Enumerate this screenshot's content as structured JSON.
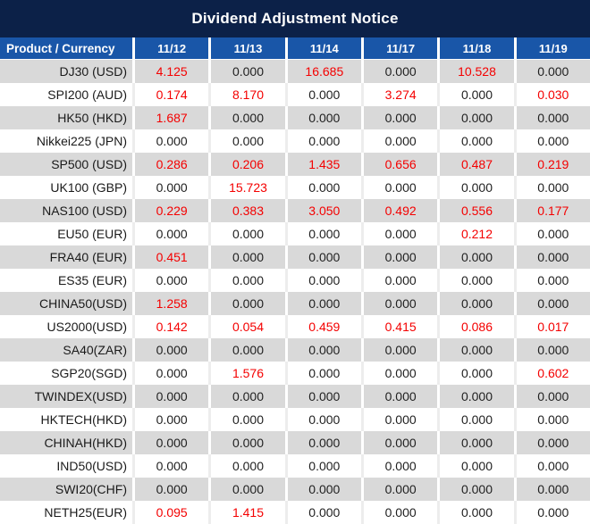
{
  "title": "Dividend Adjustment Notice",
  "colors": {
    "title_bg": "#0c2148",
    "header_bg": "#1956a8",
    "row_alt_bg": "#d9d9d9",
    "row_bg": "#ffffff",
    "grid_gray": "#ffffff",
    "grid_white": "#ededed",
    "nonzero_value_color": "#f40000",
    "zero_value_color": "#1f1f1f",
    "header_text": "#ffffff"
  },
  "table": {
    "product_header": "Product / Currency",
    "date_headers": [
      "11/12",
      "11/13",
      "11/14",
      "11/17",
      "11/18",
      "11/19"
    ],
    "rows": [
      {
        "product": "DJ30 (USD)",
        "values": [
          "4.125",
          "0.000",
          "16.685",
          "0.000",
          "10.528",
          "0.000"
        ]
      },
      {
        "product": "SPI200 (AUD)",
        "values": [
          "0.174",
          "8.170",
          "0.000",
          "3.274",
          "0.000",
          "0.030"
        ]
      },
      {
        "product": "HK50 (HKD)",
        "values": [
          "1.687",
          "0.000",
          "0.000",
          "0.000",
          "0.000",
          "0.000"
        ]
      },
      {
        "product": "Nikkei225 (JPN)",
        "values": [
          "0.000",
          "0.000",
          "0.000",
          "0.000",
          "0.000",
          "0.000"
        ]
      },
      {
        "product": "SP500 (USD)",
        "values": [
          "0.286",
          "0.206",
          "1.435",
          "0.656",
          "0.487",
          "0.219"
        ]
      },
      {
        "product": "UK100 (GBP)",
        "values": [
          "0.000",
          "15.723",
          "0.000",
          "0.000",
          "0.000",
          "0.000"
        ]
      },
      {
        "product": "NAS100 (USD)",
        "values": [
          "0.229",
          "0.383",
          "3.050",
          "0.492",
          "0.556",
          "0.177"
        ]
      },
      {
        "product": "EU50 (EUR)",
        "values": [
          "0.000",
          "0.000",
          "0.000",
          "0.000",
          "0.212",
          "0.000"
        ]
      },
      {
        "product": "FRA40 (EUR)",
        "values": [
          "0.451",
          "0.000",
          "0.000",
          "0.000",
          "0.000",
          "0.000"
        ]
      },
      {
        "product": "ES35 (EUR)",
        "values": [
          "0.000",
          "0.000",
          "0.000",
          "0.000",
          "0.000",
          "0.000"
        ]
      },
      {
        "product": "CHINA50(USD)",
        "values": [
          "1.258",
          "0.000",
          "0.000",
          "0.000",
          "0.000",
          "0.000"
        ]
      },
      {
        "product": "US2000(USD)",
        "values": [
          "0.142",
          "0.054",
          "0.459",
          "0.415",
          "0.086",
          "0.017"
        ]
      },
      {
        "product": "SA40(ZAR)",
        "values": [
          "0.000",
          "0.000",
          "0.000",
          "0.000",
          "0.000",
          "0.000"
        ]
      },
      {
        "product": "SGP20(SGD)",
        "values": [
          "0.000",
          "1.576",
          "0.000",
          "0.000",
          "0.000",
          "0.602"
        ]
      },
      {
        "product": "TWINDEX(USD)",
        "values": [
          "0.000",
          "0.000",
          "0.000",
          "0.000",
          "0.000",
          "0.000"
        ]
      },
      {
        "product": "HKTECH(HKD)",
        "values": [
          "0.000",
          "0.000",
          "0.000",
          "0.000",
          "0.000",
          "0.000"
        ]
      },
      {
        "product": "CHINAH(HKD)",
        "values": [
          "0.000",
          "0.000",
          "0.000",
          "0.000",
          "0.000",
          "0.000"
        ]
      },
      {
        "product": "IND50(USD)",
        "values": [
          "0.000",
          "0.000",
          "0.000",
          "0.000",
          "0.000",
          "0.000"
        ]
      },
      {
        "product": "SWI20(CHF)",
        "values": [
          "0.000",
          "0.000",
          "0.000",
          "0.000",
          "0.000",
          "0.000"
        ]
      },
      {
        "product": "NETH25(EUR)",
        "values": [
          "0.095",
          "1.415",
          "0.000",
          "0.000",
          "0.000",
          "0.000"
        ]
      }
    ]
  }
}
